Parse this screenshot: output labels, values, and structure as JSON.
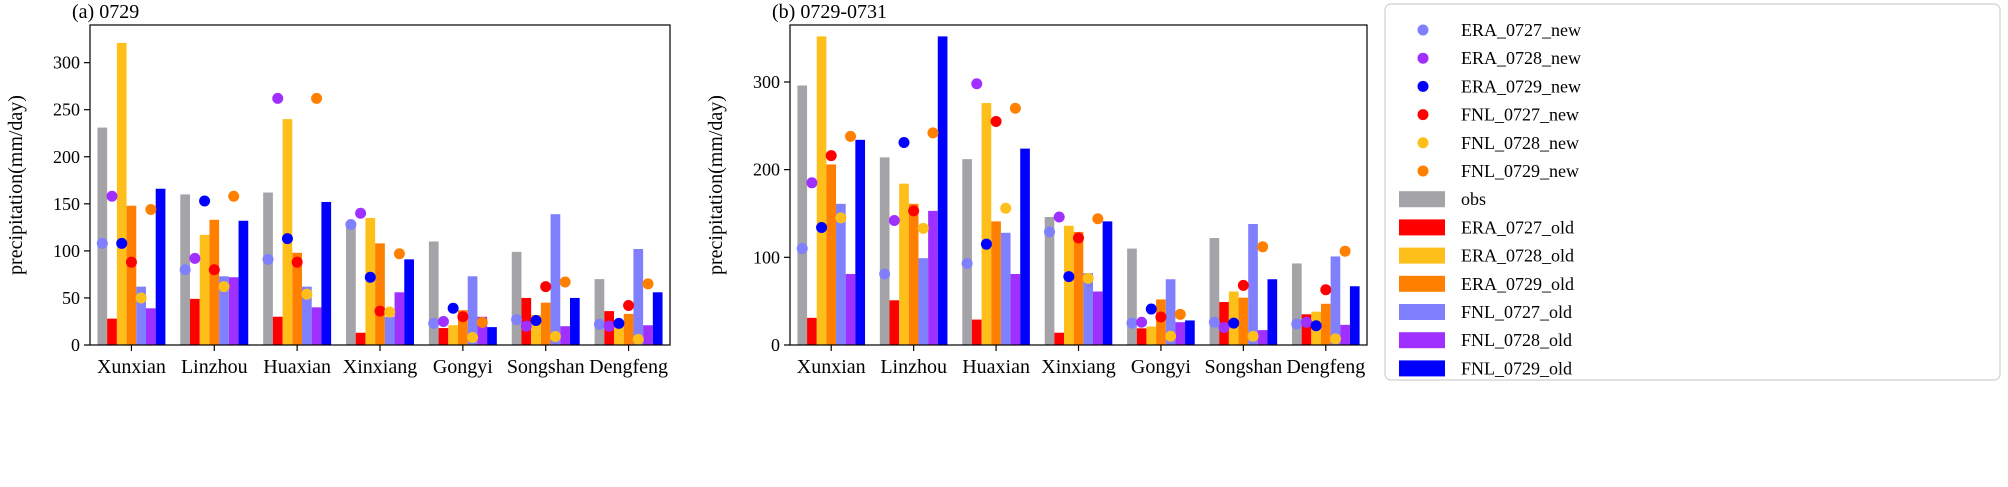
{
  "chart_data": [
    {
      "type": "bar",
      "title": "(a) 0729",
      "ylabel": "precipitation(mm/day)",
      "ylim": [
        0,
        340
      ],
      "yticks": [
        0,
        50,
        100,
        150,
        200,
        250,
        300
      ],
      "categories": [
        "Xunxian",
        "Linzhou",
        "Huaxian",
        "Xinxiang",
        "Gongyi",
        "Songshan",
        "Dengfeng"
      ],
      "series": [
        {
          "name": "obs",
          "color": "#a3a3a8",
          "values": [
            231,
            160,
            162,
            127,
            110,
            99,
            70
          ]
        },
        {
          "name": "ERA_0727_old",
          "color": "#ff0000",
          "values": [
            28,
            49,
            30,
            13,
            18,
            50,
            36
          ]
        },
        {
          "name": "ERA_0728_old",
          "color": "#ffbf1a",
          "values": [
            321,
            117,
            240,
            135,
            21,
            32,
            22
          ]
        },
        {
          "name": "ERA_0729_old",
          "color": "#ff8000",
          "values": [
            148,
            133,
            98,
            108,
            37,
            45,
            33
          ]
        },
        {
          "name": "FNL_0727_old",
          "color": "#8080ff",
          "values": [
            62,
            73,
            62,
            30,
            73,
            139,
            102
          ]
        },
        {
          "name": "FNL_0728_old",
          "color": "#a030ff",
          "values": [
            39,
            72,
            40,
            56,
            30,
            20,
            21
          ]
        },
        {
          "name": "FNL_0729_old",
          "color": "#0000ff",
          "values": [
            166,
            132,
            152,
            91,
            19,
            50,
            56
          ]
        }
      ],
      "points": [
        {
          "name": "ERA_0727_new",
          "color": "#8080ff",
          "values": [
            108,
            80,
            91,
            128,
            23,
            27,
            22
          ]
        },
        {
          "name": "ERA_0728_new",
          "color": "#a030ff",
          "values": [
            158,
            92,
            262,
            140,
            25,
            20,
            20
          ]
        },
        {
          "name": "ERA_0729_new",
          "color": "#0000ff",
          "values": [
            108,
            153,
            113,
            72,
            39,
            26,
            23
          ]
        },
        {
          "name": "FNL_0727_new",
          "color": "#ff0000",
          "values": [
            88,
            80,
            88,
            36,
            30,
            62,
            42
          ]
        },
        {
          "name": "FNL_0728_new",
          "color": "#ffbf1a",
          "values": [
            50,
            62,
            54,
            35,
            8,
            9,
            6
          ]
        },
        {
          "name": "FNL_0729_new",
          "color": "#ff8000",
          "values": [
            144,
            158,
            262,
            97,
            24,
            67,
            65
          ]
        }
      ]
    },
    {
      "type": "bar",
      "title": "(b) 0729-0731",
      "ylabel": "precipitation(mm/day)",
      "ylim": [
        0,
        365
      ],
      "yticks": [
        0,
        100,
        200,
        300
      ],
      "categories": [
        "Xunxian",
        "Linzhou",
        "Huaxian",
        "Xinxiang",
        "Gongyi",
        "Songshan",
        "Dengfeng"
      ],
      "series": [
        {
          "name": "obs",
          "color": "#a3a3a8",
          "values": [
            296,
            214,
            212,
            146,
            110,
            122,
            93
          ]
        },
        {
          "name": "ERA_0727_old",
          "color": "#ff0000",
          "values": [
            31,
            51,
            29,
            14,
            19,
            49,
            35
          ]
        },
        {
          "name": "ERA_0728_old",
          "color": "#ffbf1a",
          "values": [
            352,
            184,
            276,
            136,
            21,
            61,
            38
          ]
        },
        {
          "name": "ERA_0729_old",
          "color": "#ff8000",
          "values": [
            206,
            161,
            141,
            129,
            52,
            54,
            47
          ]
        },
        {
          "name": "FNL_0727_old",
          "color": "#8080ff",
          "values": [
            161,
            99,
            128,
            82,
            75,
            138,
            101
          ]
        },
        {
          "name": "FNL_0728_old",
          "color": "#a030ff",
          "values": [
            81,
            153,
            81,
            61,
            26,
            17,
            23
          ]
        },
        {
          "name": "FNL_0729_old",
          "color": "#0000ff",
          "values": [
            234,
            352,
            224,
            141,
            28,
            75,
            67
          ]
        }
      ],
      "points": [
        {
          "name": "ERA_0727_new",
          "color": "#8080ff",
          "values": [
            110,
            81,
            93,
            129,
            25,
            26,
            24
          ]
        },
        {
          "name": "ERA_0728_new",
          "color": "#a030ff",
          "values": [
            185,
            142,
            298,
            146,
            26,
            20,
            26
          ]
        },
        {
          "name": "ERA_0729_new",
          "color": "#0000ff",
          "values": [
            134,
            231,
            115,
            78,
            41,
            25,
            22
          ]
        },
        {
          "name": "FNL_0727_new",
          "color": "#ff0000",
          "values": [
            216,
            153,
            255,
            122,
            32,
            68,
            63
          ]
        },
        {
          "name": "FNL_0728_new",
          "color": "#ffbf1a",
          "values": [
            145,
            133,
            156,
            76,
            10,
            10,
            7
          ]
        },
        {
          "name": "FNL_0729_new",
          "color": "#ff8000",
          "values": [
            238,
            242,
            270,
            144,
            35,
            112,
            107
          ]
        }
      ]
    }
  ],
  "legend": {
    "position": "right",
    "entries": [
      {
        "label": "ERA_0727_new",
        "kind": "dot",
        "color": "#8080ff"
      },
      {
        "label": "ERA_0728_new",
        "kind": "dot",
        "color": "#a030ff"
      },
      {
        "label": "ERA_0729_new",
        "kind": "dot",
        "color": "#0000ff"
      },
      {
        "label": "FNL_0727_new",
        "kind": "dot",
        "color": "#ff0000"
      },
      {
        "label": "FNL_0728_new",
        "kind": "dot",
        "color": "#ffbf1a"
      },
      {
        "label": "FNL_0729_new",
        "kind": "dot",
        "color": "#ff8000"
      },
      {
        "label": "obs",
        "kind": "bar",
        "color": "#a3a3a8"
      },
      {
        "label": "ERA_0727_old",
        "kind": "bar",
        "color": "#ff0000"
      },
      {
        "label": "ERA_0728_old",
        "kind": "bar",
        "color": "#ffbf1a"
      },
      {
        "label": "ERA_0729_old",
        "kind": "bar",
        "color": "#ff8000"
      },
      {
        "label": "FNL_0727_old",
        "kind": "bar",
        "color": "#8080ff"
      },
      {
        "label": "FNL_0728_old",
        "kind": "bar",
        "color": "#a030ff"
      },
      {
        "label": "FNL_0729_old",
        "kind": "bar",
        "color": "#0000ff"
      }
    ]
  }
}
